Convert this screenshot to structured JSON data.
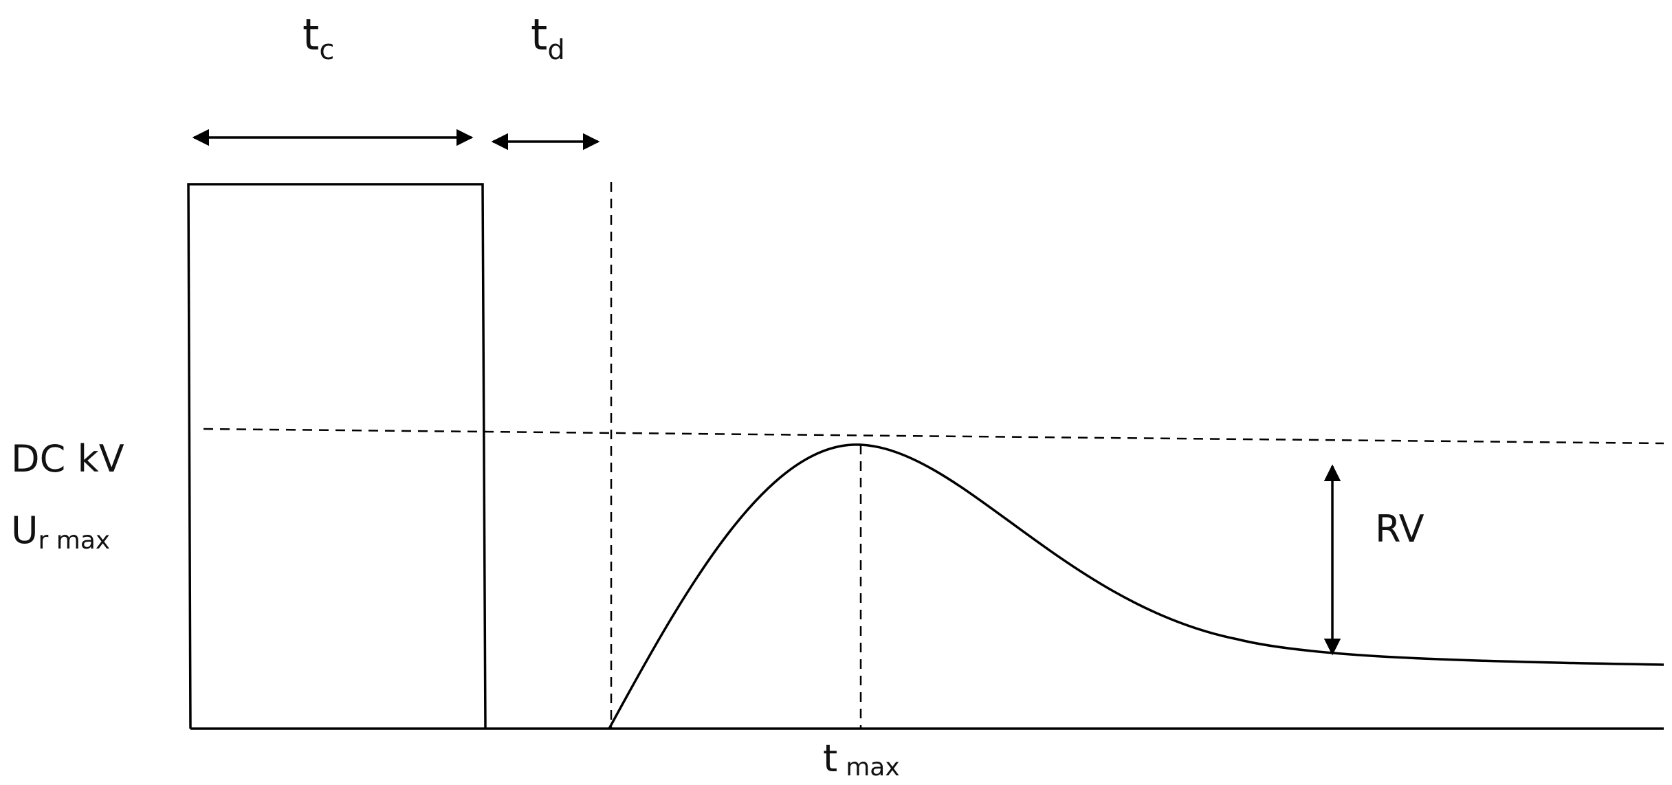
{
  "labels": {
    "tc": {
      "main": "t",
      "sub": "c"
    },
    "td": {
      "main": "t",
      "sub": "d"
    },
    "dc_kv": "DC kV",
    "ur_max": {
      "main": "U",
      "sub": "r max"
    },
    "rv": "RV",
    "t_max": {
      "main": "t",
      "sub": "max"
    }
  }
}
